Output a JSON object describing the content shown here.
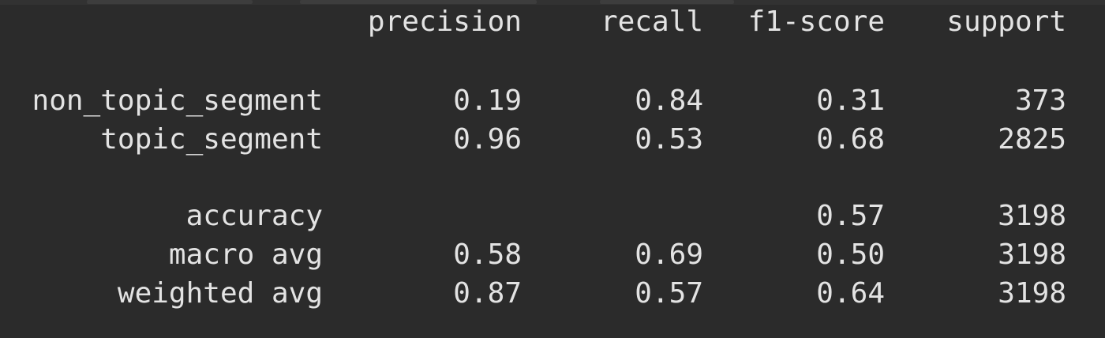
{
  "report": {
    "headers": {
      "precision": "precision",
      "recall": "recall",
      "f1": "f1-score",
      "support": "support"
    },
    "rows": [
      {
        "label": "non_topic_segment",
        "precision": "0.19",
        "recall": "0.84",
        "f1": "0.31",
        "support": "373"
      },
      {
        "label": "topic_segment",
        "precision": "0.96",
        "recall": "0.53",
        "f1": "0.68",
        "support": "2825"
      },
      {
        "label": "accuracy",
        "precision": "",
        "recall": "",
        "f1": "0.57",
        "support": "3198"
      },
      {
        "label": "macro avg",
        "precision": "0.58",
        "recall": "0.69",
        "f1": "0.50",
        "support": "3198"
      },
      {
        "label": "weighted avg",
        "precision": "0.87",
        "recall": "0.57",
        "f1": "0.64",
        "support": "3198"
      }
    ]
  },
  "colors": {
    "background": "#2b2b2b",
    "text": "#e3e3e3"
  }
}
